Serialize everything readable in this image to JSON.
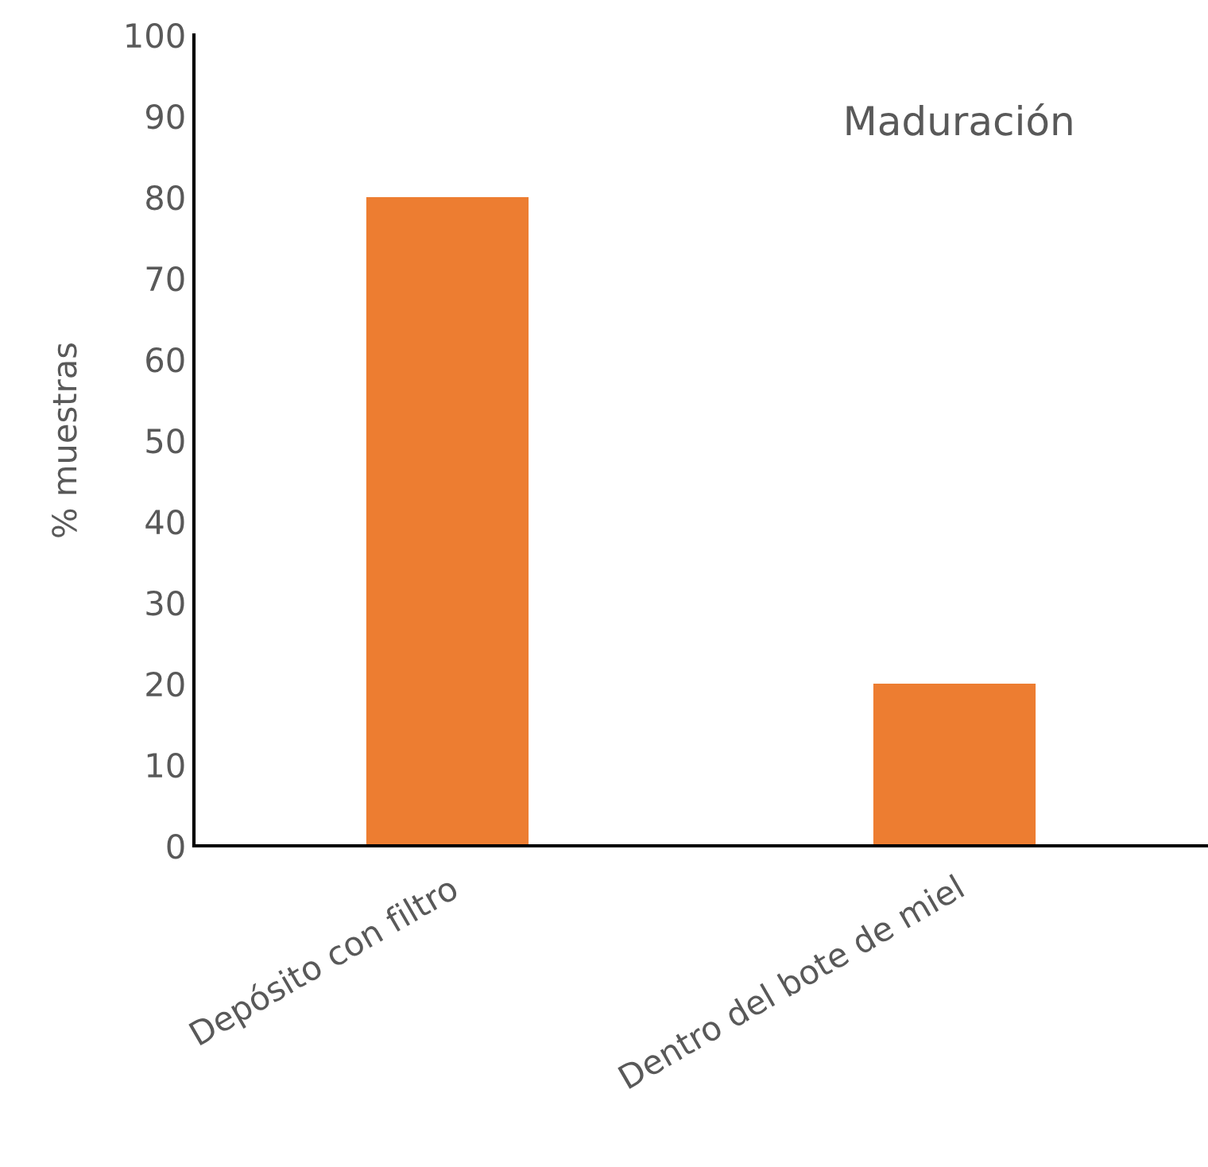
{
  "chart_data": {
    "type": "bar",
    "title": "Maduración",
    "ylabel": "% muestras",
    "categories": [
      "Depósito con filtro",
      "Dentro del bote de miel"
    ],
    "values": [
      80,
      20
    ],
    "color": "#ed7d31",
    "ylim": [
      0,
      100
    ],
    "yticks": [
      0,
      10,
      20,
      30,
      40,
      50,
      60,
      70,
      80,
      90,
      100
    ],
    "grid": false,
    "legend": false
  }
}
